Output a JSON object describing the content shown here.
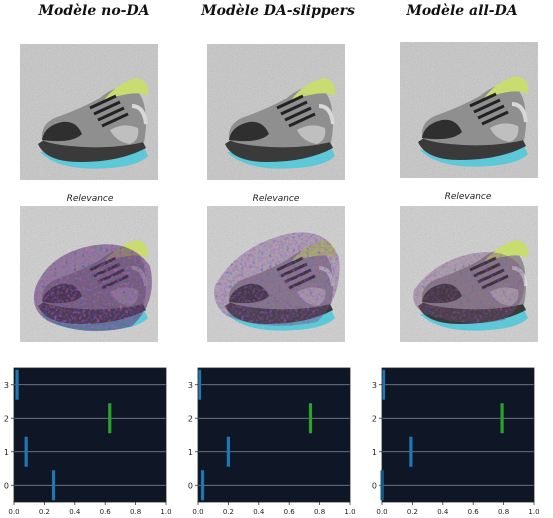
{
  "columns": [
    {
      "title": "Modèle no-DA",
      "relevance_label": "Relevance"
    },
    {
      "title": "Modèle DA-slippers",
      "relevance_label": "Relevance"
    },
    {
      "title": "Modèle all-DA",
      "relevance_label": "Relevance"
    }
  ],
  "chart_data": [
    {
      "type": "bar",
      "orientation": "horizontal",
      "categories": [
        "0",
        "1",
        "2",
        "3"
      ],
      "values": [
        0.26,
        0.08,
        0.63,
        0.02
      ],
      "highlight_index": 2,
      "xlim": [
        0,
        1
      ],
      "ylim": [
        -0.5,
        3.5
      ],
      "xticks": [
        "0.0",
        "0.2",
        "0.4",
        "0.6",
        "0.8",
        "1.0"
      ],
      "yticks": [
        "0",
        "1",
        "2",
        "3"
      ],
      "grid": "horizontal",
      "colors": {
        "bar": "#1f77b4",
        "highlight": "#2ca02c",
        "background": "#0f1626",
        "grid": "#8a8f9a"
      }
    },
    {
      "type": "bar",
      "orientation": "horizontal",
      "categories": [
        "0",
        "1",
        "2",
        "3"
      ],
      "values": [
        0.03,
        0.2,
        0.74,
        0.01
      ],
      "highlight_index": 2,
      "xlim": [
        0,
        1
      ],
      "ylim": [
        -0.5,
        3.5
      ],
      "xticks": [
        "0.0",
        "0.2",
        "0.4",
        "0.6",
        "0.8",
        "1.0"
      ],
      "yticks": [
        "0",
        "1",
        "2",
        "3"
      ],
      "grid": "horizontal",
      "colors": {
        "bar": "#1f77b4",
        "highlight": "#2ca02c",
        "background": "#0f1626",
        "grid": "#8a8f9a"
      }
    },
    {
      "type": "bar",
      "orientation": "horizontal",
      "categories": [
        "0",
        "1",
        "2",
        "3"
      ],
      "values": [
        0.0,
        0.19,
        0.79,
        0.01
      ],
      "highlight_index": 2,
      "xlim": [
        0,
        1
      ],
      "ylim": [
        -0.5,
        3.5
      ],
      "xticks": [
        "0.0",
        "0.2",
        "0.4",
        "0.6",
        "0.8",
        "1.0"
      ],
      "yticks": [
        "0",
        "1",
        "2",
        "3"
      ],
      "grid": "horizontal",
      "colors": {
        "bar": "#1f77b4",
        "highlight": "#2ca02c",
        "background": "#0f1626",
        "grid": "#8a8f9a"
      }
    }
  ]
}
